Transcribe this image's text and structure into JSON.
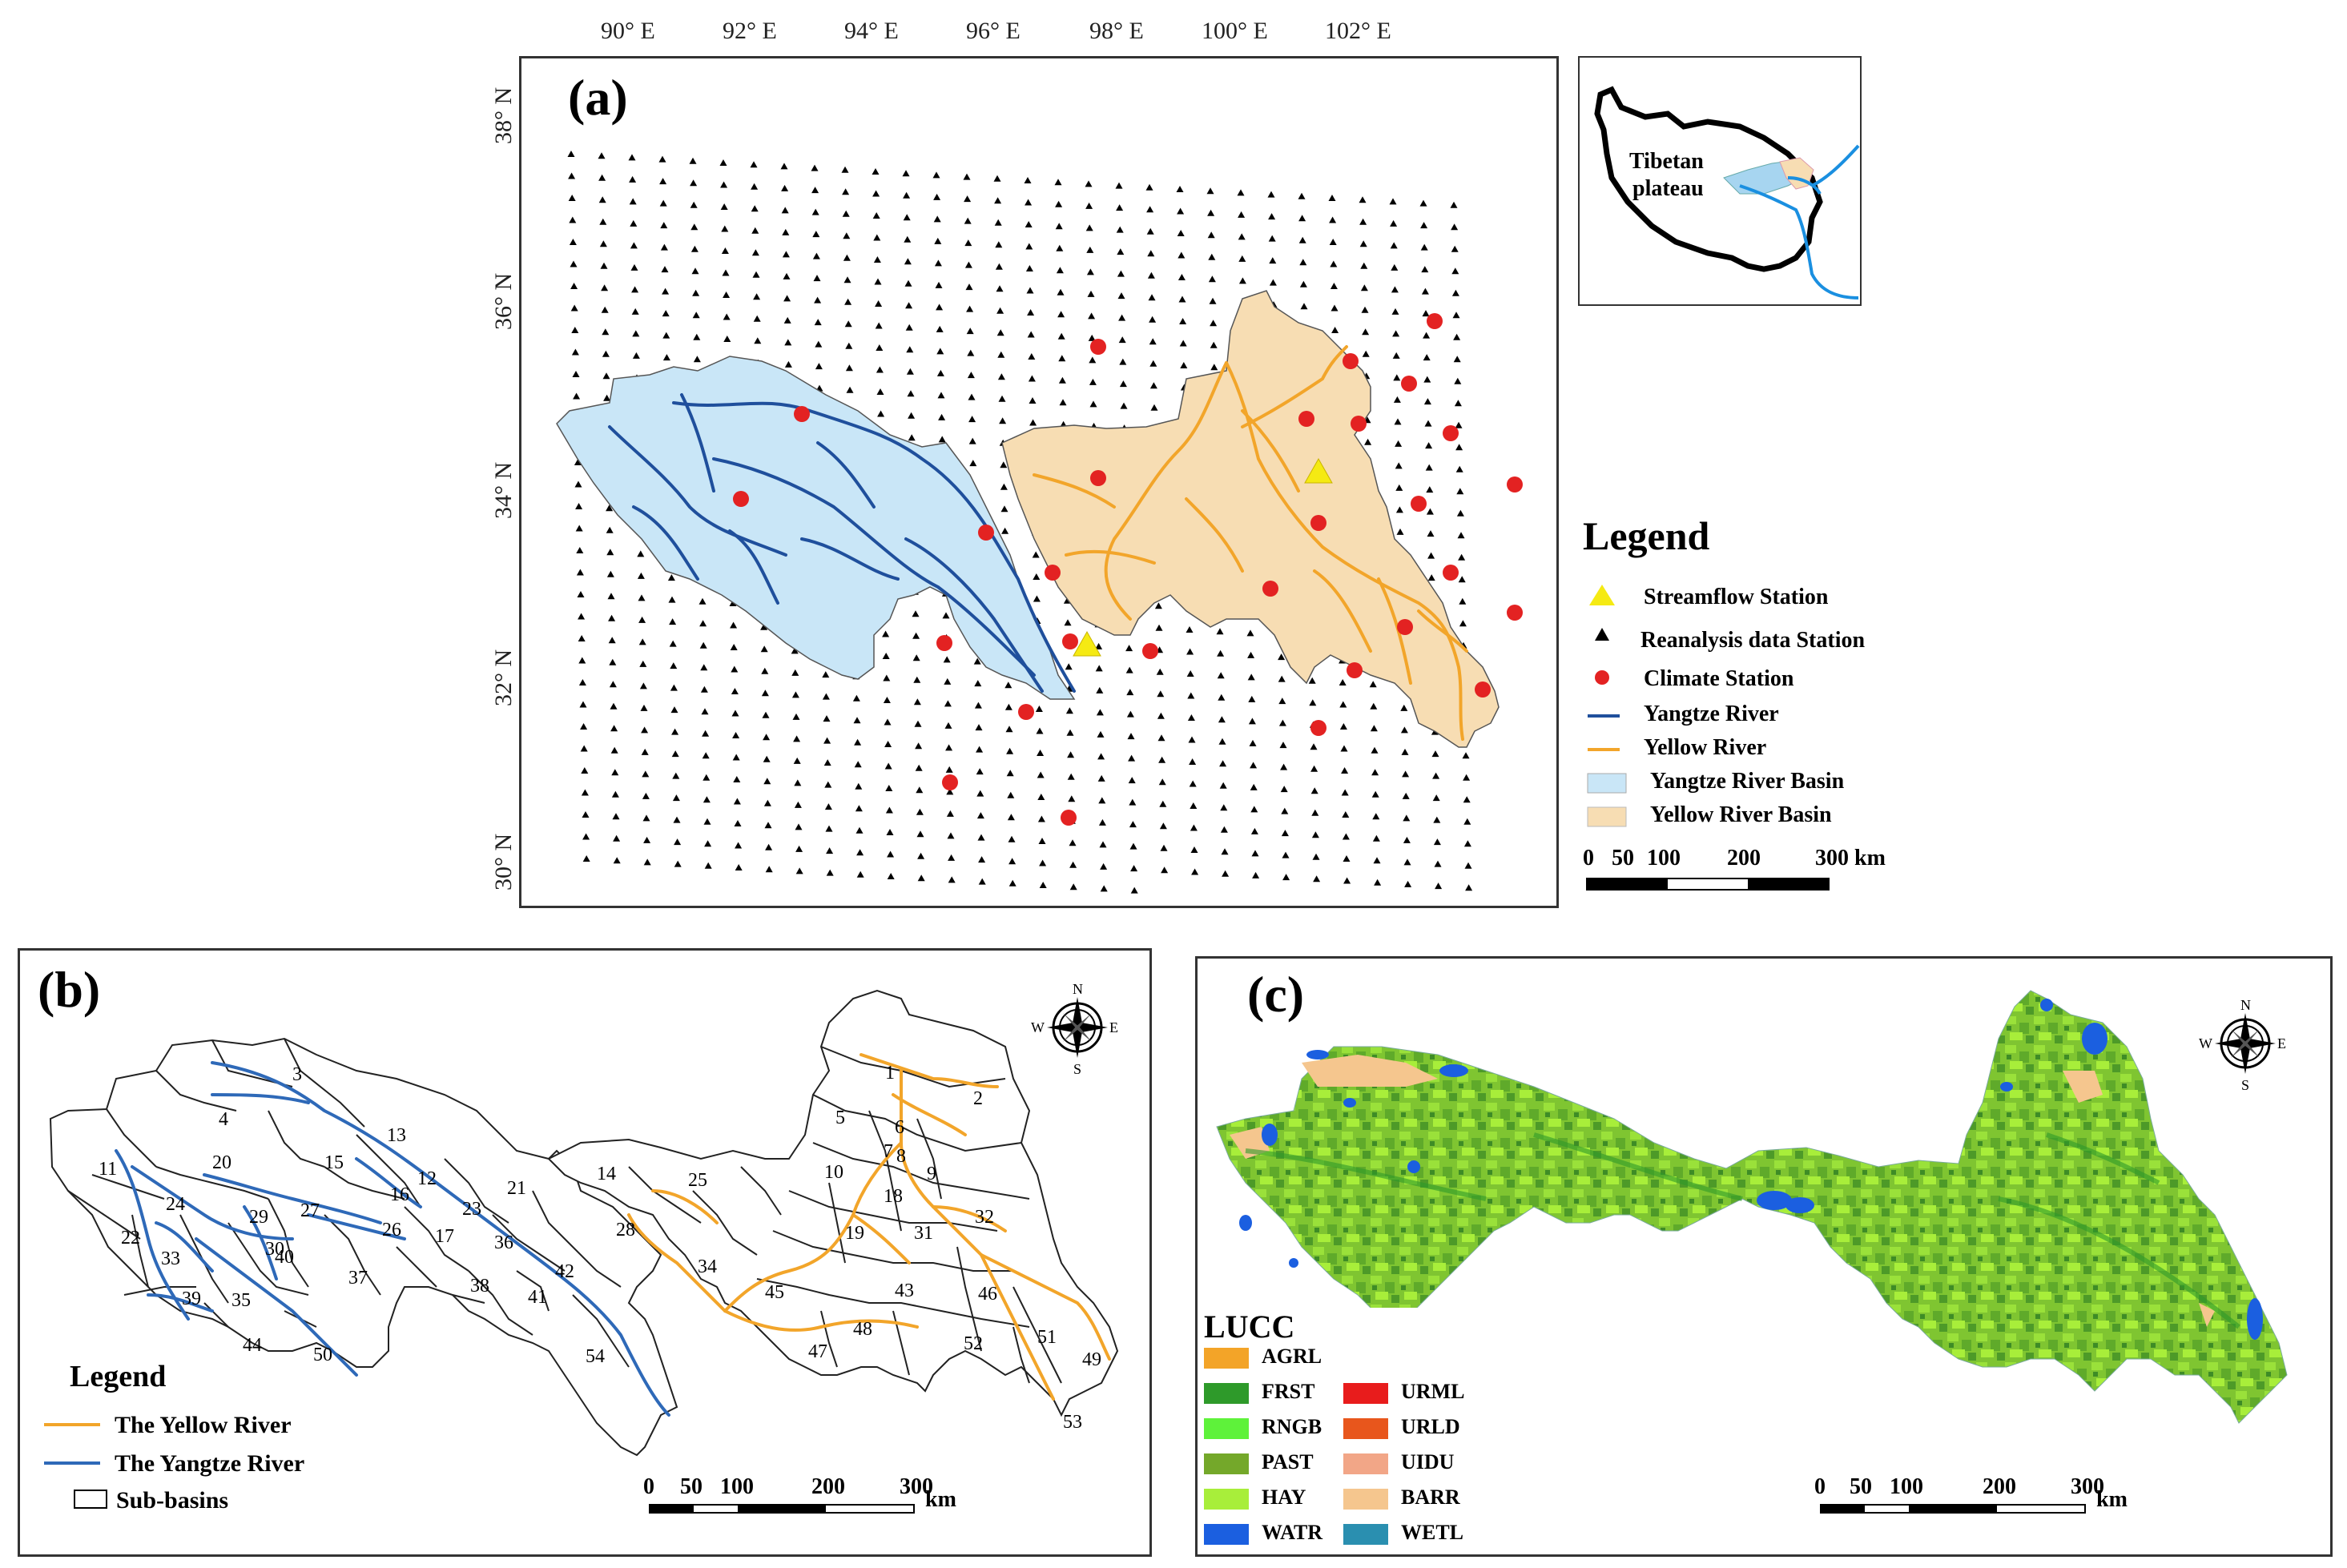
{
  "panel_a": {
    "label": "(a)",
    "lon_ticks": [
      "90° E",
      "92° E",
      "94° E",
      "96° E",
      "98° E",
      "100° E",
      "102° E"
    ],
    "lat_ticks": [
      "38° N",
      "36° N",
      "34° N",
      "32° N",
      "30° N"
    ],
    "inset_label_line1": "Tibetan",
    "inset_label_line2": "plateau",
    "legend_title": "Legend",
    "legend_items": [
      "Streamflow Station",
      "Reanalysis data Station",
      "Climate Station",
      "Yangtze River",
      "Yellow River",
      "Yangtze River Basin",
      "Yellow River Basin"
    ],
    "scale_labels": [
      "0",
      "50",
      "100",
      "200",
      "300 km"
    ],
    "colors": {
      "yangtze_basin": "#c9e6f7",
      "yellow_basin": "#f7ddb3",
      "yangtze_river": "#1f4f9c",
      "yellow_river": "#f2a52a",
      "climate_station": "#e32222",
      "streamflow_station": "#f5ea13"
    }
  },
  "panel_b": {
    "label": "(b)",
    "compass": {
      "n": "N",
      "s": "S",
      "e": "E",
      "w": "W"
    },
    "subbasin_numbers": [
      "1",
      "2",
      "3",
      "4",
      "5",
      "6",
      "7",
      "8",
      "9",
      "10",
      "11",
      "12",
      "13",
      "14",
      "15",
      "16",
      "17",
      "18",
      "19",
      "20",
      "21",
      "22",
      "23",
      "24",
      "25",
      "26",
      "27",
      "28",
      "29",
      "30",
      "31",
      "32",
      "33",
      "34",
      "35",
      "36",
      "37",
      "38",
      "39",
      "40",
      "41",
      "42",
      "43",
      "44",
      "45",
      "46",
      "47",
      "48",
      "49",
      "50",
      "51",
      "52",
      "53",
      "54"
    ],
    "legend_title": "Legend",
    "legend_items": [
      "The Yellow River",
      "The Yangtze River",
      "Sub-basins"
    ],
    "scale_labels": [
      "0",
      "50",
      "100",
      "200",
      "300"
    ],
    "scale_unit": "km"
  },
  "panel_c": {
    "label": "(c)",
    "compass": {
      "n": "N",
      "s": "S",
      "e": "E",
      "w": "W"
    },
    "lucc_title": "LUCC",
    "lucc_classes": [
      {
        "code": "AGRL",
        "color": "#f3a428"
      },
      {
        "code": "FRST",
        "color": "#2e9a2a"
      },
      {
        "code": "RNGB",
        "color": "#5ef23a"
      },
      {
        "code": "PAST",
        "color": "#74a82a"
      },
      {
        "code": "HAY",
        "color": "#a8ee3a"
      },
      {
        "code": "WATR",
        "color": "#1b5fe0"
      },
      {
        "code": "URML",
        "color": "#e81c1c"
      },
      {
        "code": "URLD",
        "color": "#e8561c"
      },
      {
        "code": "UIDU",
        "color": "#f2a687"
      },
      {
        "code": "BARR",
        "color": "#f5c68e"
      },
      {
        "code": "WETL",
        "color": "#2a8fb0"
      }
    ],
    "scale_labels": [
      "0",
      "50",
      "100",
      "200",
      "300"
    ],
    "scale_unit": "km"
  }
}
